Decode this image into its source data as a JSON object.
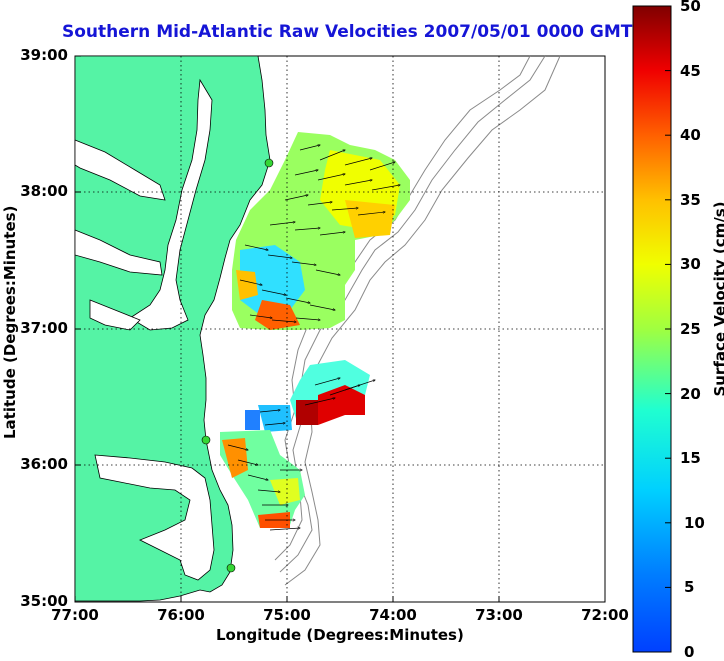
{
  "title": "Southern Mid-Atlantic Raw Velocities 2007/05/01 0000 GMT",
  "xlabel": "Longitude (Degrees:Minutes)",
  "ylabel": "Latitude (Degrees:Minutes)",
  "colorbar_label": "Surface Velocity (cm/s)",
  "xticks": [
    "77:00",
    "76:00",
    "75:00",
    "74:00",
    "73:00",
    "72:00"
  ],
  "yticks": [
    "39:00",
    "38:00",
    "37:00",
    "36:00",
    "35:00"
  ],
  "cbticks": [
    "50",
    "45",
    "40",
    "35",
    "30",
    "25",
    "20",
    "15",
    "10",
    "5",
    "0"
  ],
  "colors": {
    "land": "#55f3a5",
    "coast": "#000000",
    "bathy": "#8a8a8a",
    "title": "#1515d6",
    "station": "#35d635"
  },
  "chart_data": {
    "type": "map",
    "xlim": [
      -77,
      -72
    ],
    "ylim": [
      35,
      39
    ],
    "grid": true,
    "colorbar": {
      "min": 0,
      "max": 50,
      "colormap": "jet"
    },
    "stations": [
      {
        "lon": -75.86,
        "lat": 38.26
      },
      {
        "lon": -75.6,
        "lat": 36.17
      },
      {
        "lon": -75.45,
        "lat": 35.27
      }
    ]
  }
}
